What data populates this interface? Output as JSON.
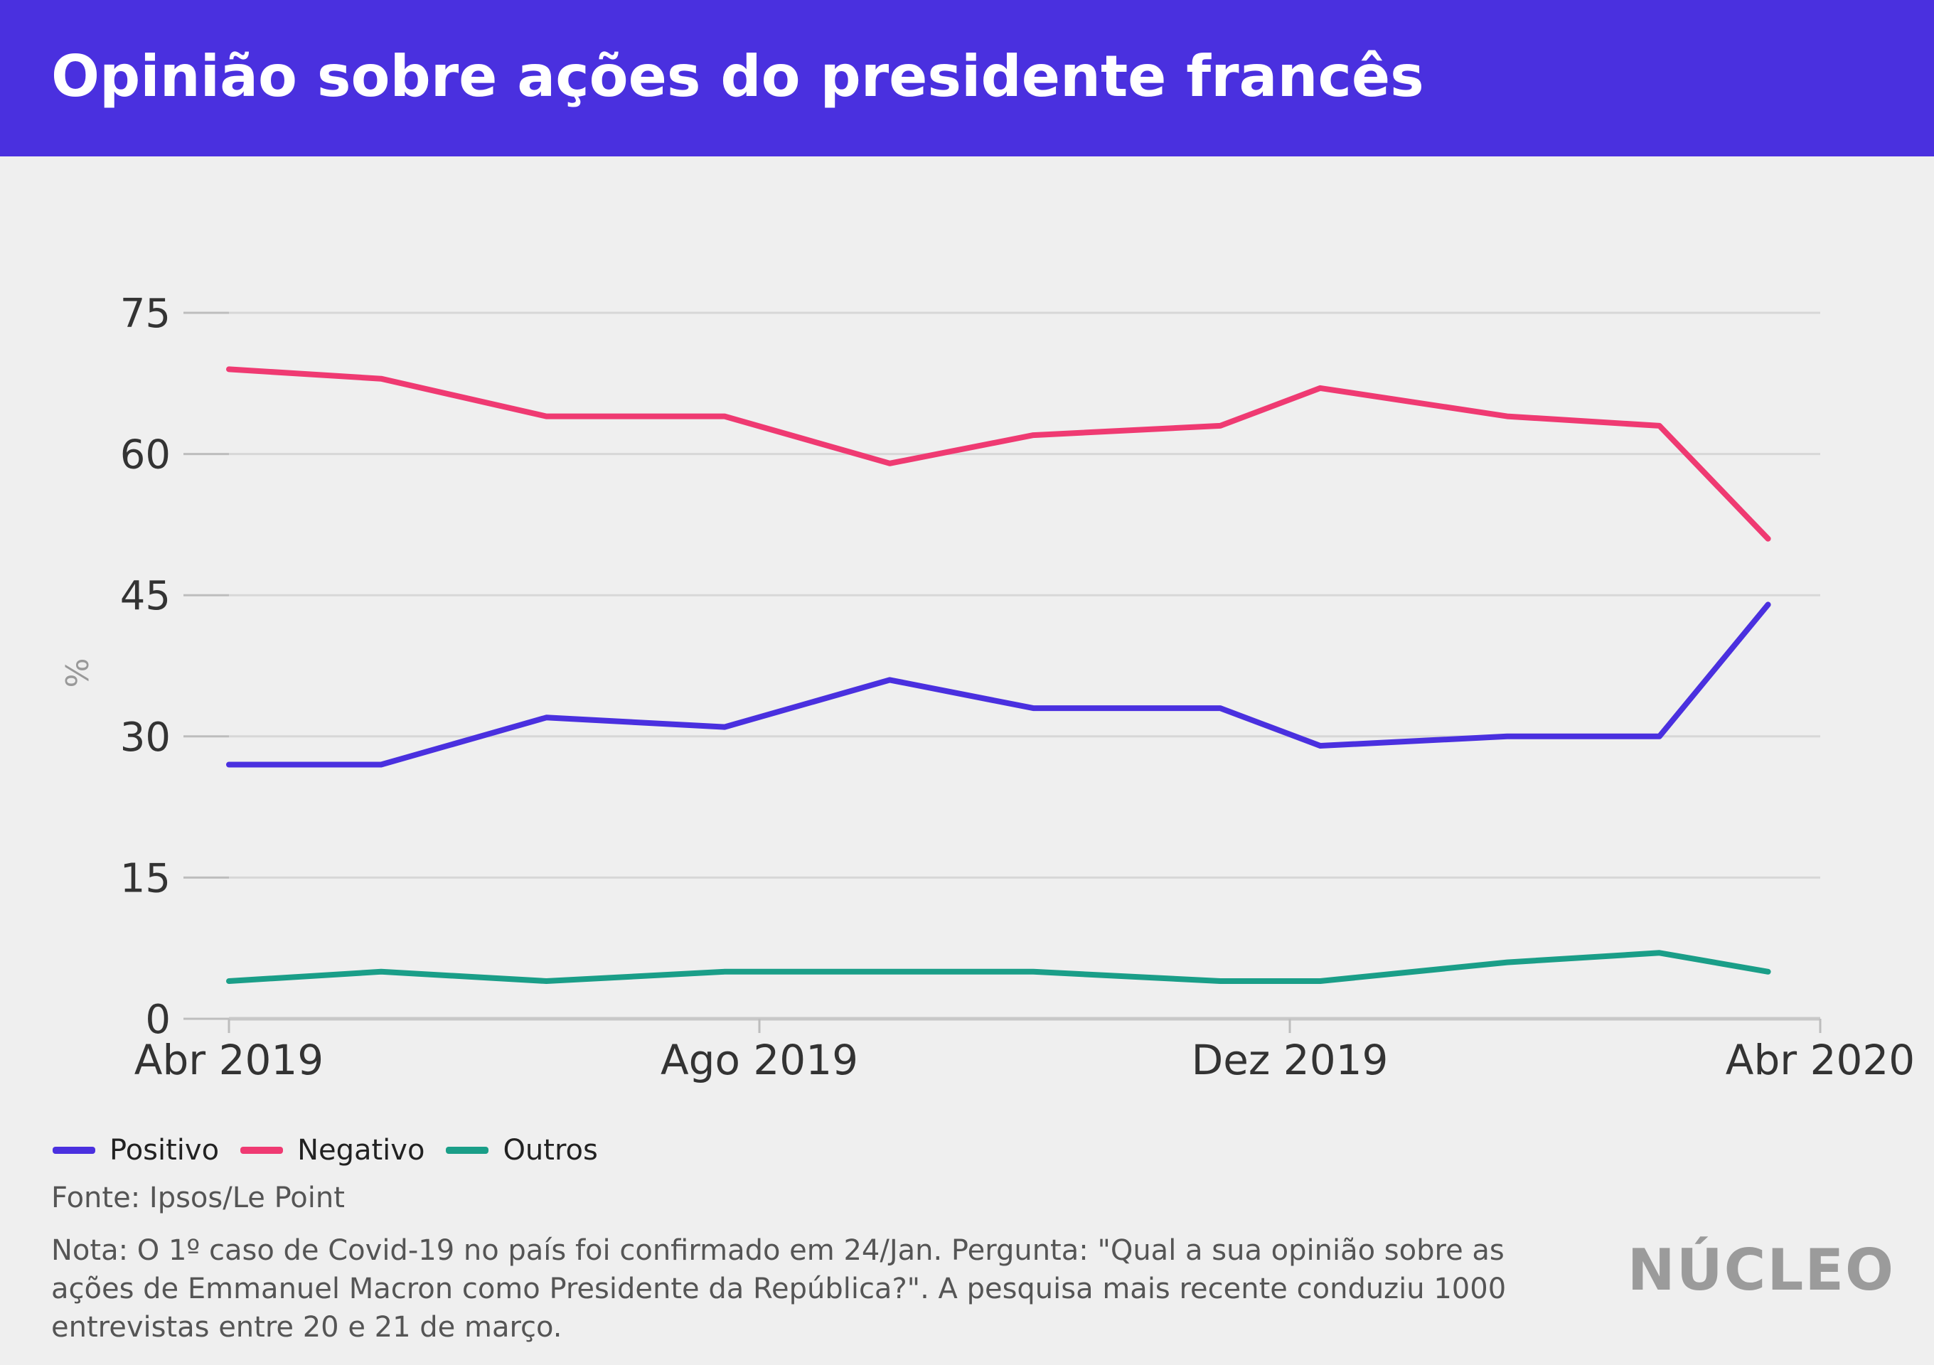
{
  "header": {
    "title": "Opinião sobre ações do presidente francês"
  },
  "colors": {
    "header_bg": "#4a30df",
    "background": "#efefef",
    "positivo": "#4a30df",
    "negativo": "#ef3a72",
    "outros": "#1a9e88"
  },
  "chart_data": {
    "type": "line",
    "xlabel": "",
    "ylabel": "%",
    "ylim": [
      0,
      75
    ],
    "yticks": [
      "0",
      "15",
      "30",
      "45",
      "60",
      "75"
    ],
    "ytick_values": [
      0,
      15,
      30,
      45,
      60,
      75
    ],
    "xticks": [
      "Abr 2019",
      "Ago 2019",
      "Dez 2019",
      "Abr 2020"
    ],
    "xtick_dates": [
      "2019-04-01",
      "2019-08-01",
      "2019-12-01",
      "2020-04-01"
    ],
    "grid": true,
    "legend_position": "bottom-left",
    "x": [
      "2019-04-01",
      "2019-05-06",
      "2019-06-13",
      "2019-07-24",
      "2019-08-31",
      "2019-10-03",
      "2019-11-15",
      "2019-12-08",
      "2020-01-20",
      "2020-02-24",
      "2020-03-20"
    ],
    "series": [
      {
        "name": "Positivo",
        "color": "#4a30df",
        "values": [
          27,
          27,
          32,
          31,
          36,
          33,
          33,
          29,
          30,
          30,
          44
        ]
      },
      {
        "name": "Negativo",
        "color": "#ef3a72",
        "values": [
          69,
          68,
          64,
          64,
          59,
          62,
          63,
          67,
          64,
          63,
          51
        ]
      },
      {
        "name": "Outros",
        "color": "#1a9e88",
        "values": [
          4,
          5,
          4,
          5,
          5,
          5,
          4,
          4,
          6,
          7,
          5
        ]
      }
    ]
  },
  "footer": {
    "source": "Fonte: Ipsos/Le Point",
    "note": "Nota: O 1º caso de Covid-19 no país foi confirmado em 24/Jan. Pergunta: \"Qual a sua opinião sobre as ações de Emmanuel Macron como Presidente da República?\". A pesquisa mais recente conduziu 1000 entrevistas entre 20 e 21 de março.",
    "logo": "NÚCLEO"
  }
}
